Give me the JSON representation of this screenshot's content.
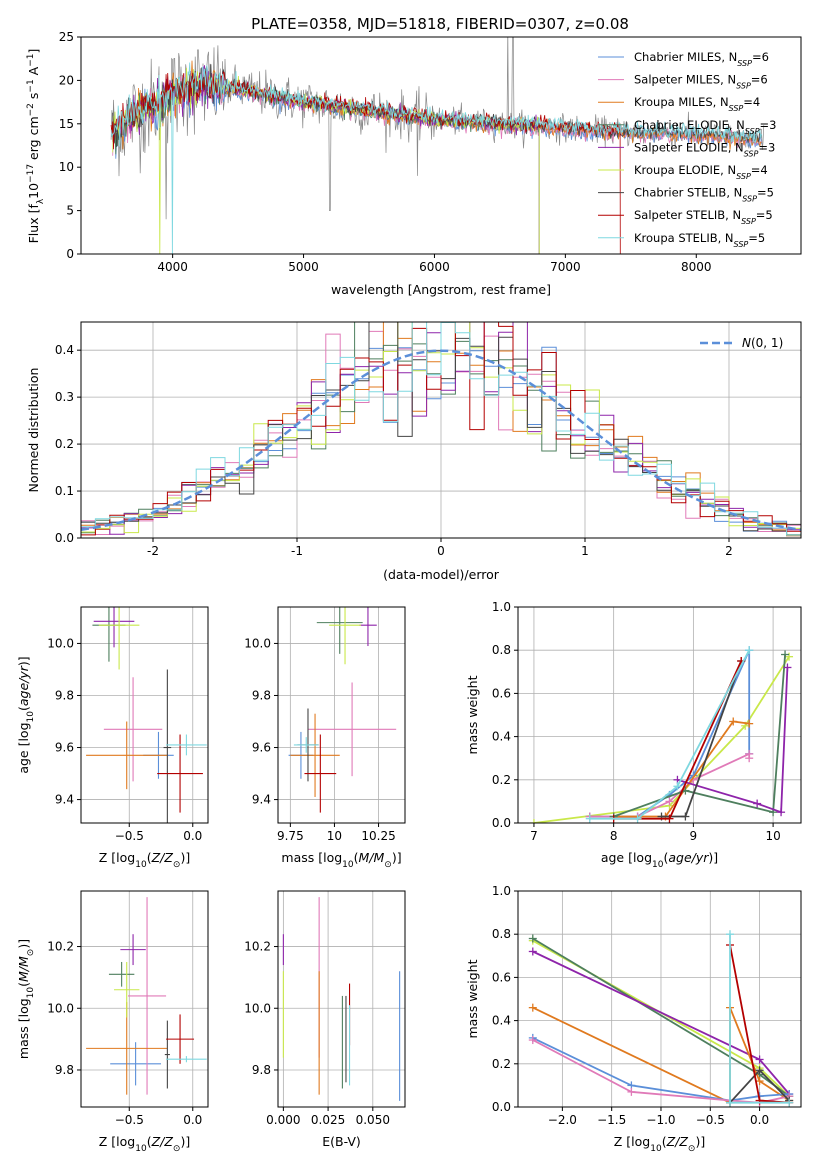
{
  "page_title": "PLATE=0358, MJD=51818, FIBERID=0307, z=0.08",
  "colors": {
    "chabrier_miles": "#5b8fd9",
    "salpeter_miles": "#e07ab8",
    "kroupa_miles": "#e07a1f",
    "chabrier_elodie": "#4e7f5e",
    "salpeter_elodie": "#8e24aa",
    "kroupa_elodie": "#c9e84a",
    "chabrier_stelib": "#444444",
    "salpeter_stelib": "#b30000",
    "kroupa_stelib": "#7fd8e0",
    "normal_curve": "#5b8fd9",
    "data_spectrum": "#888888"
  },
  "chart_data": [
    {
      "type": "line",
      "title": "PLATE=0358, MJD=51818, FIBERID=0307, z=0.08",
      "xlabel": "wavelength [Angstrom, rest frame]",
      "ylabel": "Flux [f_λ 10^-17 erg cm^-2 s^-1 A^-1]",
      "xlim": [
        3300,
        8800
      ],
      "ylim": [
        0,
        25
      ],
      "xticks": [
        4000,
        5000,
        6000,
        7000,
        8000
      ],
      "yticks": [
        0,
        5,
        10,
        15,
        20,
        25
      ],
      "grid": false,
      "legend_position": "top-right",
      "legend": [
        "Chabrier MILES, N_SSP=6",
        "Salpeter MILES, N_SSP=6",
        "Kroupa MILES, N_SSP=4",
        "Chabrier ELODIE, N_SSP=3",
        "Salpeter ELODIE, N_SSP=3",
        "Kroupa ELODIE, N_SSP=4",
        "Chabrier STELIB, N_SSP=5",
        "Salpeter STELIB, N_SSP=5",
        "Kroupa STELIB, N_SSP=5"
      ],
      "continuum_anchors": {
        "x": [
          3550,
          3700,
          3900,
          4000,
          4200,
          4500,
          5000,
          5500,
          6000,
          6500,
          7000,
          7500,
          8000,
          8500
        ],
        "y": [
          14,
          16,
          17.5,
          18.5,
          19.5,
          19,
          17.5,
          16.5,
          15.5,
          15,
          14.5,
          14,
          13.8,
          13.2
        ]
      }
    },
    {
      "type": "line",
      "xlabel": "(data-model)/error",
      "ylabel": "Normed distribution",
      "xlim": [
        -2.5,
        2.5
      ],
      "ylim": [
        0,
        0.46
      ],
      "xticks": [
        -2,
        -1,
        0,
        1,
        2
      ],
      "yticks": [
        0.0,
        0.1,
        0.2,
        0.3,
        0.4
      ],
      "grid": true,
      "legend_position": "top-right",
      "legend": [
        "N(0,1)"
      ],
      "bin_width": 0.1
    },
    {
      "type": "scatter",
      "xlabel": "Z [log10(Z/Z⊙)]",
      "ylabel": "age [log10(age/yr)]",
      "xlim": [
        -0.88,
        0.12
      ],
      "ylim": [
        9.31,
        10.14
      ],
      "xticks": [
        -0.5,
        0.0
      ],
      "xtick_labels": [
        "−0.5",
        "0.0"
      ],
      "yticks": [
        9.4,
        9.6,
        9.8,
        10.0
      ],
      "grid": true,
      "errorbars": [
        {
          "series": "chabrier_miles",
          "x": -0.27,
          "xerr": 0.12,
          "y": 9.57,
          "yerr": 0.09
        },
        {
          "series": "salpeter_miles",
          "x": -0.47,
          "xerr": 0.23,
          "y": 9.67,
          "yerr": 0.2
        },
        {
          "series": "kroupa_miles",
          "x": -0.52,
          "xerr": 0.32,
          "y": 9.57,
          "yerr": 0.13
        },
        {
          "series": "chabrier_elodie",
          "x": -0.66,
          "xerr": 0.13,
          "y": 10.07,
          "yerr": 0.14
        },
        {
          "series": "salpeter_elodie",
          "x": -0.62,
          "xerr": 0.16,
          "y": 10.085,
          "yerr": 0.1
        },
        {
          "series": "kroupa_elodie",
          "x": -0.58,
          "xerr": 0.16,
          "y": 10.07,
          "yerr": 0.17
        },
        {
          "series": "chabrier_stelib",
          "x": -0.2,
          "xerr": 0.03,
          "y": 9.6,
          "yerr": 0.3
        },
        {
          "series": "salpeter_stelib",
          "x": -0.1,
          "xerr": 0.18,
          "y": 9.5,
          "yerr": 0.15
        },
        {
          "series": "kroupa_stelib",
          "x": -0.05,
          "xerr": 0.16,
          "y": 9.61,
          "yerr": 0.04
        }
      ]
    },
    {
      "type": "scatter",
      "xlabel": "mass [log10(M/M⊙)]",
      "ylabel": "",
      "xlim": [
        9.68,
        10.4
      ],
      "ylim": [
        9.31,
        10.14
      ],
      "xticks": [
        9.75,
        10.0,
        10.25
      ],
      "yticks": [
        9.4,
        9.6,
        9.8,
        10.0
      ],
      "grid": true,
      "errorbars": [
        {
          "series": "chabrier_miles",
          "x": 9.81,
          "xerr": 0.07,
          "y": 9.57,
          "yerr": 0.09
        },
        {
          "series": "salpeter_miles",
          "x": 10.1,
          "xerr": 0.25,
          "y": 9.67,
          "yerr": 0.18
        },
        {
          "series": "kroupa_miles",
          "x": 9.89,
          "xerr": 0.14,
          "y": 9.57,
          "yerr": 0.16
        },
        {
          "series": "chabrier_elodie",
          "x": 10.03,
          "xerr": 0.13,
          "y": 10.08,
          "yerr": 0.12
        },
        {
          "series": "salpeter_elodie",
          "x": 10.19,
          "xerr": 0.05,
          "y": 10.07,
          "yerr": 0.08
        },
        {
          "series": "kroupa_elodie",
          "x": 10.06,
          "xerr": 0.09,
          "y": 10.07,
          "yerr": 0.15
        },
        {
          "series": "chabrier_stelib",
          "x": 9.85,
          "xerr": 0.06,
          "y": 9.61,
          "yerr": 0.14
        },
        {
          "series": "salpeter_stelib",
          "x": 9.92,
          "xerr": 0.09,
          "y": 9.5,
          "yerr": 0.15
        },
        {
          "series": "kroupa_stelib",
          "x": 9.84,
          "xerr": 0.07,
          "y": 9.61,
          "yerr": 0.03
        }
      ]
    },
    {
      "type": "line",
      "xlabel": "age [log10(age/yr)]",
      "ylabel": "mass weight",
      "xlim": [
        6.8,
        10.35
      ],
      "ylim": [
        0,
        1.0
      ],
      "xticks": [
        7,
        8,
        9,
        10
      ],
      "yticks": [
        0.0,
        0.2,
        0.4,
        0.6,
        0.8,
        1.0
      ],
      "grid": true,
      "series": [
        {
          "series": "kroupa_elodie",
          "x": [
            7.0,
            8.7,
            9.65,
            10.2
          ],
          "y": [
            0.0,
            0.08,
            0.45,
            0.77
          ]
        },
        {
          "series": "chabrier_miles",
          "x": [
            7.7,
            8.3,
            8.7,
            9.0,
            9.7,
            9.7
          ],
          "y": [
            0.03,
            0.03,
            0.13,
            0.22,
            0.8,
            0.32
          ]
        },
        {
          "series": "salpeter_miles",
          "x": [
            7.7,
            8.3,
            8.7,
            9.0,
            9.7,
            9.7
          ],
          "y": [
            0.03,
            0.03,
            0.1,
            0.2,
            0.32,
            0.3
          ]
        },
        {
          "series": "kroupa_miles",
          "x": [
            8.0,
            8.65,
            9.5,
            9.7
          ],
          "y": [
            0.03,
            0.03,
            0.47,
            0.46
          ]
        },
        {
          "series": "chabrier_elodie",
          "x": [
            8.0,
            8.9,
            10.0,
            10.15
          ],
          "y": [
            0.03,
            0.15,
            0.05,
            0.78
          ]
        },
        {
          "series": "salpeter_elodie",
          "x": [
            8.8,
            9.8,
            10.1,
            10.18
          ],
          "y": [
            0.2,
            0.09,
            0.05,
            0.72
          ]
        },
        {
          "series": "chabrier_stelib",
          "x": [
            8.6,
            8.9,
            9.6
          ],
          "y": [
            0.03,
            0.03,
            0.75
          ]
        },
        {
          "series": "salpeter_stelib",
          "x": [
            8.0,
            8.7,
            9.6
          ],
          "y": [
            0.02,
            0.02,
            0.75
          ]
        },
        {
          "series": "kroupa_stelib",
          "x": [
            7.7,
            8.3,
            8.8,
            9.7
          ],
          "y": [
            0.02,
            0.02,
            0.17,
            0.8
          ]
        }
      ]
    },
    {
      "type": "scatter",
      "xlabel": "Z [log10(Z/Z⊙)]",
      "ylabel": "mass [log10(M/M⊙)]",
      "xlim": [
        -0.88,
        0.12
      ],
      "ylim": [
        9.68,
        10.38
      ],
      "xticks": [
        -0.5,
        0.0
      ],
      "xtick_labels": [
        "−0.5",
        "0.0"
      ],
      "yticks": [
        9.8,
        10.0,
        10.2
      ],
      "grid": true,
      "errorbars": [
        {
          "series": "chabrier_miles",
          "x": -0.45,
          "xerr": 0.2,
          "y": 9.82,
          "yerr": 0.07
        },
        {
          "series": "salpeter_miles",
          "x": -0.36,
          "xerr": 0.15,
          "y": 10.04,
          "yerr": 0.32
        },
        {
          "series": "kroupa_miles",
          "x": -0.52,
          "xerr": 0.32,
          "y": 9.87,
          "yerr": 0.15
        },
        {
          "series": "chabrier_elodie",
          "x": -0.56,
          "xerr": 0.1,
          "y": 10.11,
          "yerr": 0.04
        },
        {
          "series": "salpeter_elodie",
          "x": -0.47,
          "xerr": 0.1,
          "y": 10.19,
          "yerr": 0.05
        },
        {
          "series": "kroupa_elodie",
          "x": -0.52,
          "xerr": 0.1,
          "y": 10.06,
          "yerr": 0.09
        },
        {
          "series": "chabrier_stelib",
          "x": -0.2,
          "xerr": 0.02,
          "y": 9.85,
          "yerr": 0.11
        },
        {
          "series": "salpeter_stelib",
          "x": -0.1,
          "xerr": 0.11,
          "y": 9.9,
          "yerr": 0.08
        },
        {
          "series": "kroupa_stelib",
          "x": -0.05,
          "xerr": 0.16,
          "y": 9.835,
          "yerr": 0.01
        }
      ]
    },
    {
      "type": "scatter",
      "xlabel": "E(B-V)",
      "ylabel": "",
      "xlim": [
        -0.003,
        0.068
      ],
      "ylim": [
        9.68,
        10.38
      ],
      "xticks": [
        0.0,
        0.025,
        0.05
      ],
      "xtick_labels": [
        "0.000",
        "0.025",
        "0.050"
      ],
      "yticks": [
        9.8,
        10.0,
        10.2
      ],
      "grid": true,
      "errorbars": [
        {
          "series": "chabrier_miles",
          "x": 0.065,
          "xerr": 0,
          "y": 9.91,
          "yerr": 0.21
        },
        {
          "series": "salpeter_miles",
          "x": 0.02,
          "xerr": 0,
          "y": 10.1,
          "yerr": 0.26
        },
        {
          "series": "kroupa_miles",
          "x": 0.02,
          "xerr": 0,
          "y": 9.92,
          "yerr": 0.2
        },
        {
          "series": "chabrier_elodie",
          "x": 0.033,
          "xerr": 0,
          "y": 9.89,
          "yerr": 0.15
        },
        {
          "series": "salpeter_elodie",
          "x": 0.0,
          "xerr": 0,
          "y": 10.19,
          "yerr": 0.05
        },
        {
          "series": "kroupa_elodie",
          "x": 0.0,
          "xerr": 0,
          "y": 9.98,
          "yerr": 0.14
        },
        {
          "series": "chabrier_stelib",
          "x": 0.035,
          "xerr": 0,
          "y": 9.9,
          "yerr": 0.14
        },
        {
          "series": "salpeter_stelib",
          "x": 0.037,
          "xerr": 0,
          "y": 9.98,
          "yerr": 0.1
        },
        {
          "series": "kroupa_stelib",
          "x": 0.037,
          "xerr": 0,
          "y": 9.88,
          "yerr": 0.13
        }
      ]
    },
    {
      "type": "line",
      "xlabel": "Z [log10(Z/Z⊙)]",
      "ylabel": "mass weight",
      "xlim": [
        -2.45,
        0.42
      ],
      "ylim": [
        0,
        1.0
      ],
      "xticks": [
        -2.0,
        -1.5,
        -1.0,
        -0.5,
        0.0
      ],
      "xtick_labels": [
        "−2.0",
        "−1.5",
        "−1.0",
        "−0.5",
        "0.0"
      ],
      "yticks": [
        0.0,
        0.2,
        0.4,
        0.6,
        0.8,
        1.0
      ],
      "grid": true,
      "series": [
        {
          "series": "kroupa_elodie",
          "x": [
            -2.3,
            0.0,
            0.3
          ],
          "y": [
            0.77,
            0.18,
            0.05
          ]
        },
        {
          "series": "chabrier_elodie",
          "x": [
            -2.3,
            0.0,
            0.3
          ],
          "y": [
            0.78,
            0.15,
            0.05
          ]
        },
        {
          "series": "salpeter_elodie",
          "x": [
            -2.3,
            0.0,
            0.3
          ],
          "y": [
            0.72,
            0.22,
            0.06
          ]
        },
        {
          "series": "kroupa_miles",
          "x": [
            -2.3,
            -0.3,
            -0.3,
            0.0,
            0.3
          ],
          "y": [
            0.46,
            0.02,
            0.46,
            0.12,
            0.03
          ]
        },
        {
          "series": "chabrier_miles",
          "x": [
            -2.3,
            -1.3,
            -0.3,
            0.0,
            0.3
          ],
          "y": [
            0.32,
            0.1,
            0.03,
            0.05,
            0.06
          ]
        },
        {
          "series": "salpeter_miles",
          "x": [
            -2.3,
            -1.3,
            -0.3,
            0.0,
            0.3
          ],
          "y": [
            0.31,
            0.07,
            0.03,
            0.02,
            0.05
          ]
        },
        {
          "series": "chabrier_stelib",
          "x": [
            -0.3,
            0.0,
            0.3
          ],
          "y": [
            0.02,
            0.17,
            0.03
          ]
        },
        {
          "series": "salpeter_stelib",
          "x": [
            -0.3,
            0.0,
            0.3
          ],
          "y": [
            0.75,
            0.03,
            0.02
          ]
        },
        {
          "series": "kroupa_stelib",
          "x": [
            -0.3,
            -0.3,
            0.3
          ],
          "y": [
            0.8,
            0.02,
            0.02
          ]
        }
      ]
    }
  ]
}
